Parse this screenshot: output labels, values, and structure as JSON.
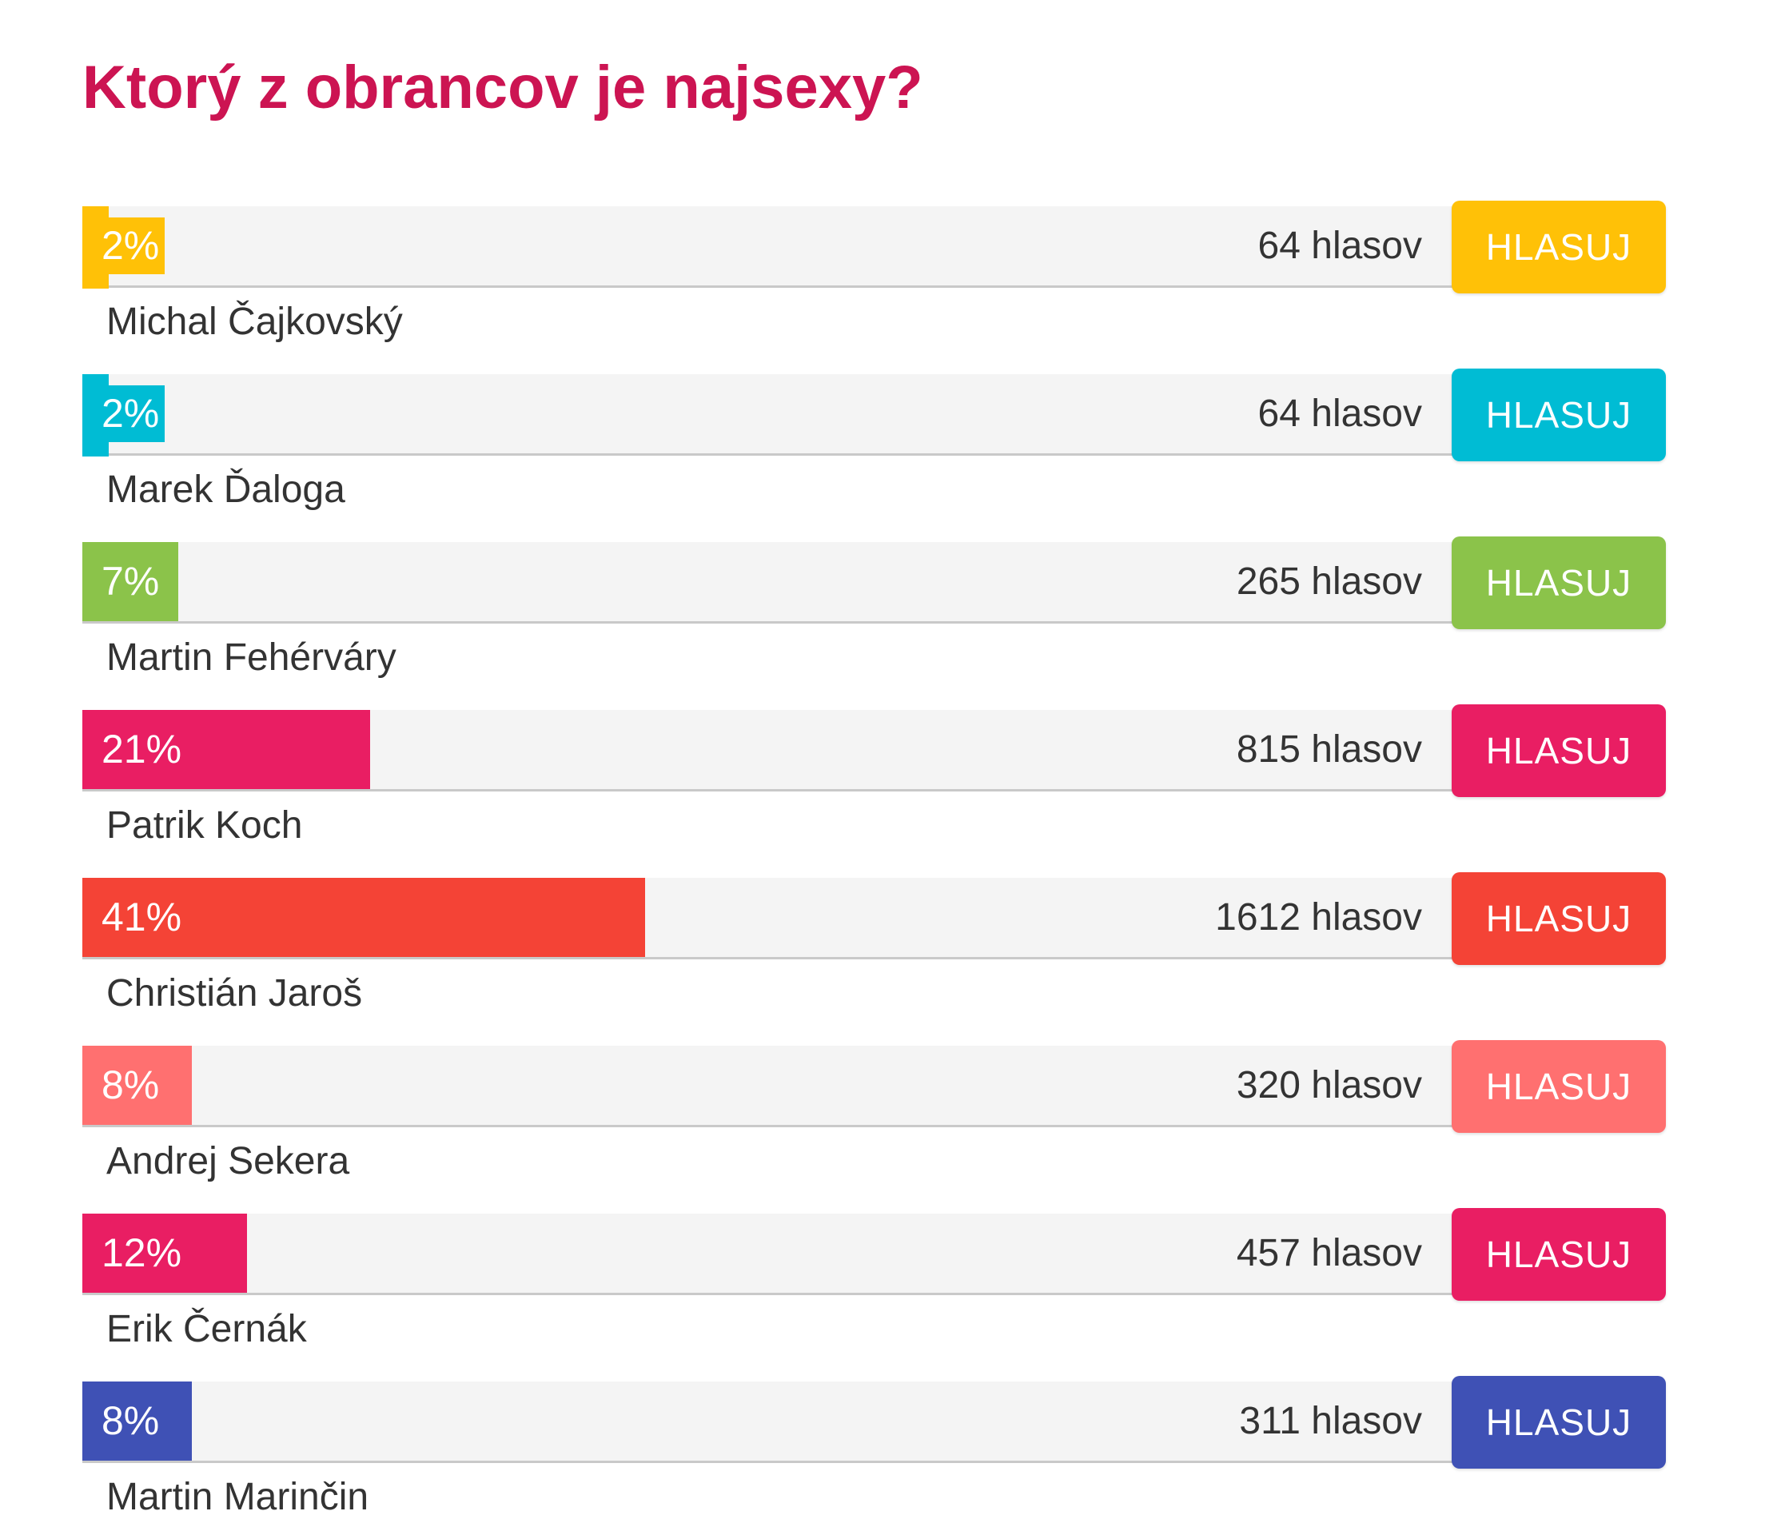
{
  "poll": {
    "title": "Ktorý z obrancov je najsexy?",
    "options": [
      {
        "name": "Michal Čajkovský",
        "percent_label": "2%",
        "percent": 2,
        "votes_label": "64 hlasov",
        "button_label": "HLASUJ",
        "color": "#ffc107"
      },
      {
        "name": "Marek Ďaloga",
        "percent_label": "2%",
        "percent": 2,
        "votes_label": "64 hlasov",
        "button_label": "HLASUJ",
        "color": "#00bcd4"
      },
      {
        "name": "Martin Fehérváry",
        "percent_label": "7%",
        "percent": 7,
        "votes_label": "265 hlasov",
        "button_label": "HLASUJ",
        "color": "#8bc34a"
      },
      {
        "name": "Patrik Koch",
        "percent_label": "21%",
        "percent": 21,
        "votes_label": "815 hlasov",
        "button_label": "HLASUJ",
        "color": "#e91e63"
      },
      {
        "name": "Christián Jaroš",
        "percent_label": "41%",
        "percent": 41,
        "votes_label": "1612 hlasov",
        "button_label": "HLASUJ",
        "color": "#f44336"
      },
      {
        "name": "Andrej Sekera",
        "percent_label": "8%",
        "percent": 8,
        "votes_label": "320 hlasov",
        "button_label": "HLASUJ",
        "color": "#ff7070"
      },
      {
        "name": "Erik Černák",
        "percent_label": "12%",
        "percent": 12,
        "votes_label": "457 hlasov",
        "button_label": "HLASUJ",
        "color": "#e91e63"
      },
      {
        "name": "Martin Marinčin",
        "percent_label": "8%",
        "percent": 8,
        "votes_label": "311 hlasov",
        "button_label": "HLASUJ",
        "color": "#3f51b5"
      }
    ]
  }
}
